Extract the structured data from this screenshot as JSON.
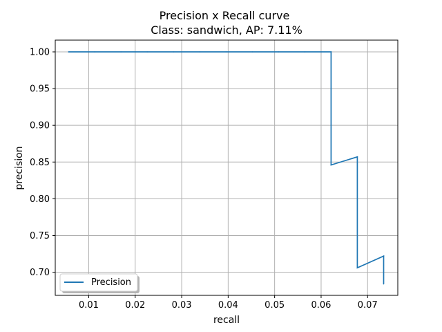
{
  "chart_data": {
    "type": "line",
    "title": "Precision x Recall curve",
    "subtitle": "Class: sandwich, AP: 7.11%",
    "xlabel": "recall",
    "ylabel": "precision",
    "xlim": [
      0.0028,
      0.0765
    ],
    "ylim": [
      0.6685,
      1.016
    ],
    "xticks": [
      0.01,
      0.02,
      0.03,
      0.04,
      0.05,
      0.06,
      0.07
    ],
    "xtick_labels": [
      "0.01",
      "0.02",
      "0.03",
      "0.04",
      "0.05",
      "0.06",
      "0.07"
    ],
    "yticks": [
      0.7,
      0.75,
      0.8,
      0.85,
      0.9,
      0.95,
      1.0
    ],
    "ytick_labels": [
      "0.70",
      "0.75",
      "0.80",
      "0.85",
      "0.90",
      "0.95",
      "1.00"
    ],
    "grid": true,
    "legend_position": "lower-left",
    "series": [
      {
        "name": "Precision",
        "color": "#1f77b4",
        "x": [
          0.00565,
          0.0113,
          0.01695,
          0.0226,
          0.02825,
          0.0339,
          0.03955,
          0.0452,
          0.05085,
          0.0565,
          0.06215,
          0.06215,
          0.0678,
          0.0678,
          0.07345,
          0.07345
        ],
        "y": [
          1.0,
          1.0,
          1.0,
          1.0,
          1.0,
          1.0,
          1.0,
          1.0,
          1.0,
          1.0,
          1.0,
          0.846,
          0.857,
          0.706,
          0.722,
          0.684
        ]
      }
    ]
  }
}
